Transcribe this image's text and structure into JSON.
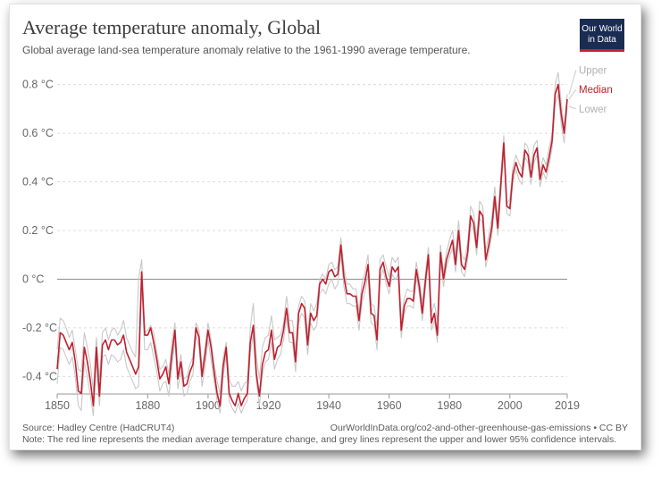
{
  "chart_data": {
    "type": "line",
    "title": "Average temperature anomaly, Global",
    "subtitle": "Global average land-sea temperature anomaly relative to the 1961-1990 average temperature.",
    "xlabel": "",
    "ylabel": "",
    "xlim": [
      1850,
      2019
    ],
    "ylim": [
      -0.45,
      0.85
    ],
    "x_ticks": [
      1850,
      1880,
      1900,
      1920,
      1940,
      1960,
      1980,
      2000,
      2019
    ],
    "y_ticks": [
      {
        "value": 0.8,
        "label": "0.8 °C"
      },
      {
        "value": 0.6,
        "label": "0.6 °C"
      },
      {
        "value": 0.4,
        "label": "0.4 °C"
      },
      {
        "value": 0.2,
        "label": "0.2 °C"
      },
      {
        "value": 0.0,
        "label": "0 °C"
      },
      {
        "value": -0.2,
        "label": "-0.2 °C"
      },
      {
        "value": -0.4,
        "label": "-0.4 °C"
      }
    ],
    "legend_position": "right-end",
    "x": [
      1850,
      1851,
      1852,
      1853,
      1854,
      1855,
      1856,
      1857,
      1858,
      1859,
      1860,
      1861,
      1862,
      1863,
      1864,
      1865,
      1866,
      1867,
      1868,
      1869,
      1870,
      1871,
      1872,
      1873,
      1874,
      1875,
      1876,
      1877,
      1878,
      1879,
      1880,
      1881,
      1882,
      1883,
      1884,
      1885,
      1886,
      1887,
      1888,
      1889,
      1890,
      1891,
      1892,
      1893,
      1894,
      1895,
      1896,
      1897,
      1898,
      1899,
      1900,
      1901,
      1902,
      1903,
      1904,
      1905,
      1906,
      1907,
      1908,
      1909,
      1910,
      1911,
      1912,
      1913,
      1914,
      1915,
      1916,
      1917,
      1918,
      1919,
      1920,
      1921,
      1922,
      1923,
      1924,
      1925,
      1926,
      1927,
      1928,
      1929,
      1930,
      1931,
      1932,
      1933,
      1934,
      1935,
      1936,
      1937,
      1938,
      1939,
      1940,
      1941,
      1942,
      1943,
      1944,
      1945,
      1946,
      1947,
      1948,
      1949,
      1950,
      1951,
      1952,
      1953,
      1954,
      1955,
      1956,
      1957,
      1958,
      1959,
      1960,
      1961,
      1962,
      1963,
      1964,
      1965,
      1966,
      1967,
      1968,
      1969,
      1970,
      1971,
      1972,
      1973,
      1974,
      1975,
      1976,
      1977,
      1978,
      1979,
      1980,
      1981,
      1982,
      1983,
      1984,
      1985,
      1986,
      1987,
      1988,
      1989,
      1990,
      1991,
      1992,
      1993,
      1994,
      1995,
      1996,
      1997,
      1998,
      1999,
      2000,
      2001,
      2002,
      2003,
      2004,
      2005,
      2006,
      2007,
      2008,
      2009,
      2010,
      2011,
      2012,
      2013,
      2014,
      2015,
      2016,
      2017,
      2018,
      2019
    ],
    "series": [
      {
        "name": "Upper",
        "color": "#c8c8c8",
        "values": [
          -0.29,
          -0.16,
          -0.17,
          -0.2,
          -0.24,
          -0.21,
          -0.29,
          -0.37,
          -0.38,
          -0.22,
          -0.28,
          -0.35,
          -0.46,
          -0.24,
          -0.41,
          -0.22,
          -0.2,
          -0.25,
          -0.21,
          -0.2,
          -0.23,
          -0.21,
          -0.17,
          -0.24,
          -0.27,
          -0.3,
          -0.32,
          0.0,
          0.08,
          -0.22,
          -0.21,
          -0.19,
          -0.22,
          -0.3,
          -0.37,
          -0.36,
          -0.33,
          -0.39,
          -0.26,
          -0.18,
          -0.39,
          -0.31,
          -0.41,
          -0.4,
          -0.35,
          -0.32,
          -0.18,
          -0.21,
          -0.37,
          -0.28,
          -0.18,
          -0.25,
          -0.35,
          -0.42,
          -0.47,
          -0.32,
          -0.26,
          -0.41,
          -0.44,
          -0.44,
          -0.42,
          -0.46,
          -0.43,
          -0.42,
          -0.2,
          -0.1,
          -0.32,
          -0.41,
          -0.28,
          -0.24,
          -0.23,
          -0.15,
          -0.25,
          -0.24,
          -0.23,
          -0.18,
          -0.07,
          -0.17,
          -0.17,
          -0.3,
          -0.11,
          -0.07,
          -0.09,
          -0.23,
          -0.1,
          -0.13,
          -0.1,
          0.0,
          0.02,
          0.0,
          0.06,
          0.07,
          0.04,
          0.05,
          0.17,
          0.05,
          -0.02,
          -0.02,
          -0.04,
          -0.04,
          -0.13,
          -0.02,
          0.03,
          0.1,
          -0.1,
          -0.11,
          -0.2,
          0.08,
          0.1,
          0.05,
          0.01,
          0.09,
          0.07,
          0.09,
          -0.17,
          -0.08,
          -0.04,
          -0.05,
          -0.05,
          0.07,
          0.0,
          -0.1,
          0.02,
          0.13,
          -0.14,
          -0.1,
          -0.17,
          0.14,
          0.03,
          0.11,
          0.16,
          0.2,
          0.1,
          0.24,
          0.1,
          0.08,
          0.15,
          0.3,
          0.27,
          0.17,
          0.32,
          0.3,
          0.12,
          0.18,
          0.25,
          0.38,
          0.25,
          0.43,
          0.59,
          0.31,
          0.33,
          0.46,
          0.51,
          0.48,
          0.45,
          0.56,
          0.54,
          0.46,
          0.55,
          0.57,
          0.44,
          0.5,
          0.47,
          0.54,
          0.6,
          0.8,
          0.85,
          0.73,
          0.62,
          0.76
        ]
      },
      {
        "name": "Median",
        "color": "#c0202e",
        "values": [
          -0.37,
          -0.22,
          -0.23,
          -0.26,
          -0.29,
          -0.26,
          -0.34,
          -0.46,
          -0.47,
          -0.28,
          -0.34,
          -0.42,
          -0.52,
          -0.28,
          -0.48,
          -0.27,
          -0.25,
          -0.29,
          -0.25,
          -0.25,
          -0.27,
          -0.26,
          -0.23,
          -0.3,
          -0.33,
          -0.36,
          -0.39,
          -0.36,
          0.03,
          -0.23,
          -0.23,
          -0.2,
          -0.26,
          -0.33,
          -0.41,
          -0.39,
          -0.36,
          -0.43,
          -0.31,
          -0.21,
          -0.41,
          -0.34,
          -0.44,
          -0.43,
          -0.38,
          -0.35,
          -0.2,
          -0.24,
          -0.4,
          -0.31,
          -0.21,
          -0.28,
          -0.38,
          -0.47,
          -0.52,
          -0.36,
          -0.28,
          -0.47,
          -0.5,
          -0.52,
          -0.47,
          -0.52,
          -0.49,
          -0.47,
          -0.26,
          -0.19,
          -0.39,
          -0.48,
          -0.35,
          -0.3,
          -0.29,
          -0.21,
          -0.33,
          -0.28,
          -0.27,
          -0.21,
          -0.12,
          -0.22,
          -0.22,
          -0.34,
          -0.14,
          -0.1,
          -0.12,
          -0.27,
          -0.14,
          -0.17,
          -0.15,
          -0.02,
          0.0,
          -0.02,
          0.03,
          0.04,
          0.01,
          0.02,
          0.14,
          0.01,
          -0.06,
          -0.06,
          -0.07,
          -0.07,
          -0.17,
          -0.06,
          -0.01,
          0.06,
          -0.14,
          -0.15,
          -0.25,
          0.04,
          0.07,
          0.01,
          -0.03,
          0.05,
          0.03,
          0.05,
          -0.21,
          -0.11,
          -0.08,
          -0.08,
          -0.09,
          0.04,
          -0.03,
          -0.14,
          -0.01,
          0.1,
          -0.18,
          -0.14,
          -0.23,
          0.11,
          0.0,
          0.08,
          0.12,
          0.16,
          0.06,
          0.2,
          0.06,
          0.04,
          0.11,
          0.26,
          0.23,
          0.13,
          0.28,
          0.26,
          0.08,
          0.14,
          0.21,
          0.34,
          0.21,
          0.39,
          0.56,
          0.3,
          0.29,
          0.43,
          0.48,
          0.44,
          0.42,
          0.53,
          0.51,
          0.42,
          0.51,
          0.54,
          0.41,
          0.47,
          0.44,
          0.5,
          0.57,
          0.76,
          0.8,
          0.68,
          0.6,
          0.74
        ]
      },
      {
        "name": "Lower",
        "color": "#c8c8c8",
        "values": [
          -0.43,
          -0.28,
          -0.29,
          -0.32,
          -0.35,
          -0.32,
          -0.4,
          -0.52,
          -0.54,
          -0.34,
          -0.4,
          -0.48,
          -0.56,
          -0.33,
          -0.52,
          -0.32,
          -0.31,
          -0.35,
          -0.31,
          -0.32,
          -0.34,
          -0.33,
          -0.29,
          -0.36,
          -0.39,
          -0.42,
          -0.45,
          -0.44,
          -0.02,
          -0.29,
          -0.29,
          -0.26,
          -0.32,
          -0.38,
          -0.46,
          -0.43,
          -0.42,
          -0.48,
          -0.36,
          -0.25,
          -0.45,
          -0.38,
          -0.48,
          -0.47,
          -0.42,
          -0.39,
          -0.23,
          -0.28,
          -0.44,
          -0.36,
          -0.25,
          -0.33,
          -0.42,
          -0.5,
          -0.55,
          -0.4,
          -0.31,
          -0.5,
          -0.53,
          -0.55,
          -0.51,
          -0.55,
          -0.52,
          -0.5,
          -0.3,
          -0.23,
          -0.42,
          -0.52,
          -0.39,
          -0.34,
          -0.33,
          -0.26,
          -0.37,
          -0.33,
          -0.31,
          -0.25,
          -0.16,
          -0.26,
          -0.26,
          -0.38,
          -0.18,
          -0.14,
          -0.16,
          -0.31,
          -0.18,
          -0.21,
          -0.19,
          -0.06,
          -0.04,
          -0.06,
          -0.02,
          0.0,
          -0.04,
          -0.02,
          0.1,
          -0.03,
          -0.1,
          -0.1,
          -0.11,
          -0.11,
          -0.21,
          -0.1,
          -0.05,
          0.02,
          -0.18,
          -0.19,
          -0.29,
          0.0,
          0.04,
          -0.02,
          -0.06,
          0.02,
          0.0,
          0.02,
          -0.24,
          -0.14,
          -0.11,
          -0.11,
          -0.12,
          0.01,
          -0.06,
          -0.17,
          -0.04,
          0.07,
          -0.21,
          -0.17,
          -0.26,
          0.08,
          -0.03,
          0.05,
          0.09,
          0.13,
          0.03,
          0.17,
          0.03,
          0.01,
          0.08,
          0.23,
          0.2,
          0.1,
          0.25,
          0.23,
          0.05,
          0.11,
          0.18,
          0.31,
          0.18,
          0.36,
          0.53,
          0.27,
          0.26,
          0.4,
          0.45,
          0.41,
          0.39,
          0.5,
          0.48,
          0.39,
          0.48,
          0.51,
          0.38,
          0.44,
          0.41,
          0.47,
          0.54,
          0.72,
          0.76,
          0.64,
          0.56,
          0.71
        ]
      }
    ]
  },
  "logo": {
    "line1": "Our World",
    "line2": "in Data"
  },
  "footer": {
    "source": "Source: Hadley Centre (HadCRUT4)",
    "url": "OurWorldInData.org/co2-and-other-greenhouse-gas-emissions • CC BY",
    "note": "Note: The red line represents the median average temperature change, and grey lines represent the upper and lower 95% confidence intervals."
  }
}
